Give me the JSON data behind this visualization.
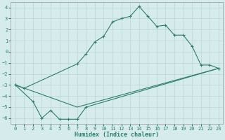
{
  "line1_x": [
    0,
    1,
    7,
    8,
    9,
    10,
    11,
    12,
    13,
    14,
    15,
    16,
    17,
    18,
    19,
    20,
    21,
    22,
    23
  ],
  "line1_y": [
    -3.0,
    -3.3,
    -1.1,
    -0.2,
    0.9,
    1.4,
    2.7,
    3.0,
    3.2,
    4.1,
    3.2,
    2.3,
    2.4,
    1.5,
    1.5,
    0.5,
    -1.2,
    -1.2,
    -1.5
  ],
  "line2_x": [
    0,
    2,
    3,
    4,
    5,
    6,
    7,
    8,
    23
  ],
  "line2_y": [
    -3.0,
    -4.5,
    -6.0,
    -5.3,
    -6.1,
    -6.1,
    -6.1,
    -5.0,
    -1.5
  ],
  "line3_x": [
    0,
    7,
    23
  ],
  "line3_y": [
    -3.0,
    -5.0,
    -1.5
  ],
  "color": "#2e7d6e",
  "bg_color": "#d6ecec",
  "grid_color": "#b8d4d4",
  "xlabel": "Humidex (Indice chaleur)",
  "xlim": [
    -0.5,
    23.5
  ],
  "ylim": [
    -6.5,
    4.5
  ],
  "yticks": [
    -6,
    -5,
    -4,
    -3,
    -2,
    -1,
    0,
    1,
    2,
    3,
    4
  ],
  "xticks": [
    0,
    1,
    2,
    3,
    4,
    5,
    6,
    7,
    8,
    9,
    10,
    11,
    12,
    13,
    14,
    15,
    16,
    17,
    18,
    19,
    20,
    21,
    22,
    23
  ]
}
